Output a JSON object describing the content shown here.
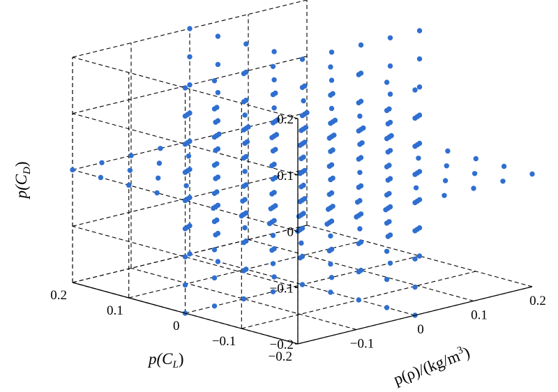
{
  "chart_data": {
    "type": "scatter",
    "dims": 3,
    "grid": true,
    "marker_color": "#2f6fd0",
    "axes": {
      "x": {
        "label": {
          "main": "p(ρ)/(kg/m",
          "sup": "3",
          "tail": ")"
        },
        "range": [
          -0.2,
          0.2
        ],
        "ticks": [
          -0.1,
          0,
          0.1,
          0.2
        ],
        "tick_labels": [
          "−0.1",
          "0",
          "0.1",
          "0.2"
        ]
      },
      "y": {
        "label": {
          "main": "p(C",
          "sub": "L",
          "tail": ")"
        },
        "range": [
          -0.2,
          0.2
        ],
        "ticks": [
          -0.2,
          -0.1,
          0,
          0.1,
          0.2
        ],
        "tick_labels": [
          "−0.2",
          "−0.1",
          "0",
          "0.1",
          "0.2"
        ]
      },
      "z": {
        "label": {
          "main": "p(C",
          "sub": "D",
          "tail": ")"
        },
        "range": [
          -0.2,
          0.2
        ],
        "ticks": [
          -0.2,
          -0.1,
          0,
          0.1,
          0.2
        ],
        "tick_labels": [
          "−0.2",
          "−0.1",
          "0",
          "0.1",
          "0.2"
        ]
      }
    },
    "point_pattern": "Sparse-grid collocation points: full 9-level grid on three coordinate planes plus a centered 5-level lattice",
    "grid_levels": [
      -0.2,
      -0.15,
      -0.1,
      -0.05,
      0,
      0.05,
      0.1,
      0.15,
      0.2
    ],
    "cube_levels": [
      -0.1,
      -0.05,
      0,
      0.05,
      0.1
    ]
  }
}
